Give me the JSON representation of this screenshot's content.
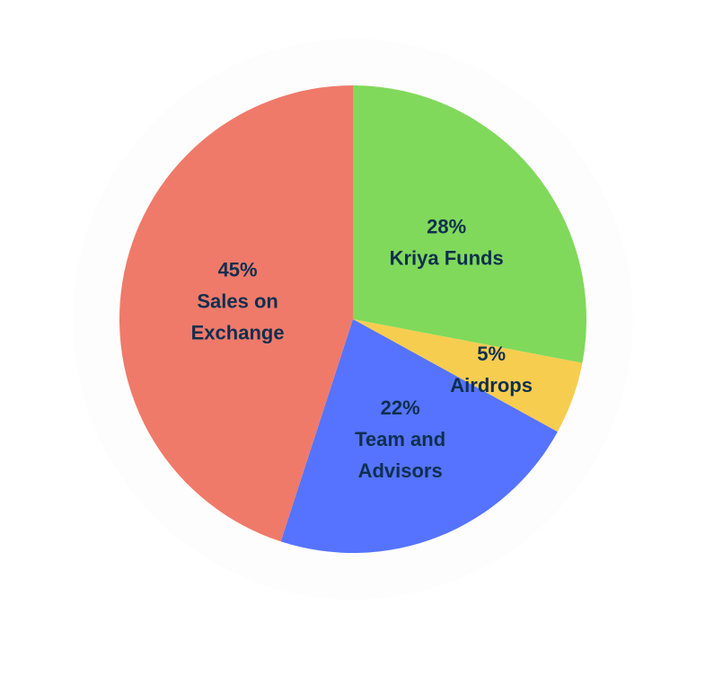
{
  "chart_data": {
    "type": "pie",
    "title": "",
    "start_angle_deg": 0,
    "direction": "clockwise",
    "slices": [
      {
        "pct_label": "28%",
        "name_lines": [
          "Kriya Funds"
        ],
        "value": 28,
        "color": "#80d95a"
      },
      {
        "pct_label": "5%",
        "name_lines": [
          "Airdrops"
        ],
        "value": 5,
        "color": "#f7cd4f"
      },
      {
        "pct_label": "22%",
        "name_lines": [
          "Team and",
          "Advisors"
        ],
        "value": 22,
        "color": "#5573ff"
      },
      {
        "pct_label": "45%",
        "name_lines": [
          "Sales on",
          "Exchange"
        ],
        "value": 45,
        "color": "#ef7a6a"
      }
    ],
    "label_color": "#0f2f4f",
    "halo_color": "#fdfdfd"
  }
}
